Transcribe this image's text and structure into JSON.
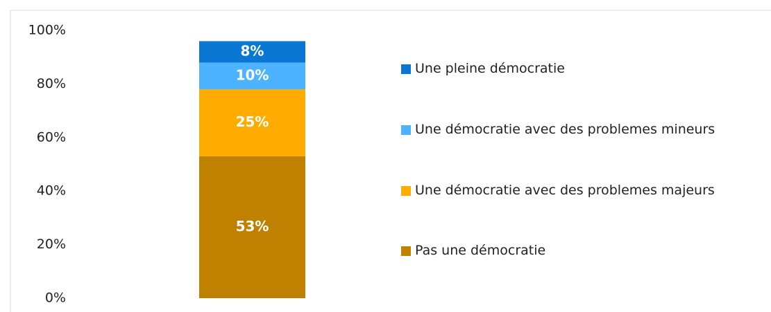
{
  "chart_data": {
    "type": "stacked-bar",
    "categories": [
      null
    ],
    "series": [
      {
        "name": "Pas une démocratie",
        "color": "#c08000",
        "values": [
          53
        ],
        "value_labels": [
          "53%"
        ]
      },
      {
        "name": "Une démocratie avec des problemes majeurs",
        "color": "#ffab00",
        "values": [
          25
        ],
        "value_labels": [
          "25%"
        ]
      },
      {
        "name": "Une démocratie avec des problemes mineurs",
        "color": "#4db3ff",
        "values": [
          10
        ],
        "value_labels": [
          "10%"
        ]
      },
      {
        "name": "Une pleine démocratie",
        "color": "#0a78d2",
        "values": [
          8
        ],
        "value_labels": [
          "8%"
        ]
      }
    ],
    "ylim": [
      0,
      100
    ],
    "yticks": [
      {
        "value": 0,
        "label": "0%"
      },
      {
        "value": 20,
        "label": "20%"
      },
      {
        "value": 40,
        "label": "40%"
      },
      {
        "value": 60,
        "label": "60%"
      },
      {
        "value": 80,
        "label": "80%"
      },
      {
        "value": 100,
        "label": "100%"
      }
    ],
    "legend": "right"
  }
}
